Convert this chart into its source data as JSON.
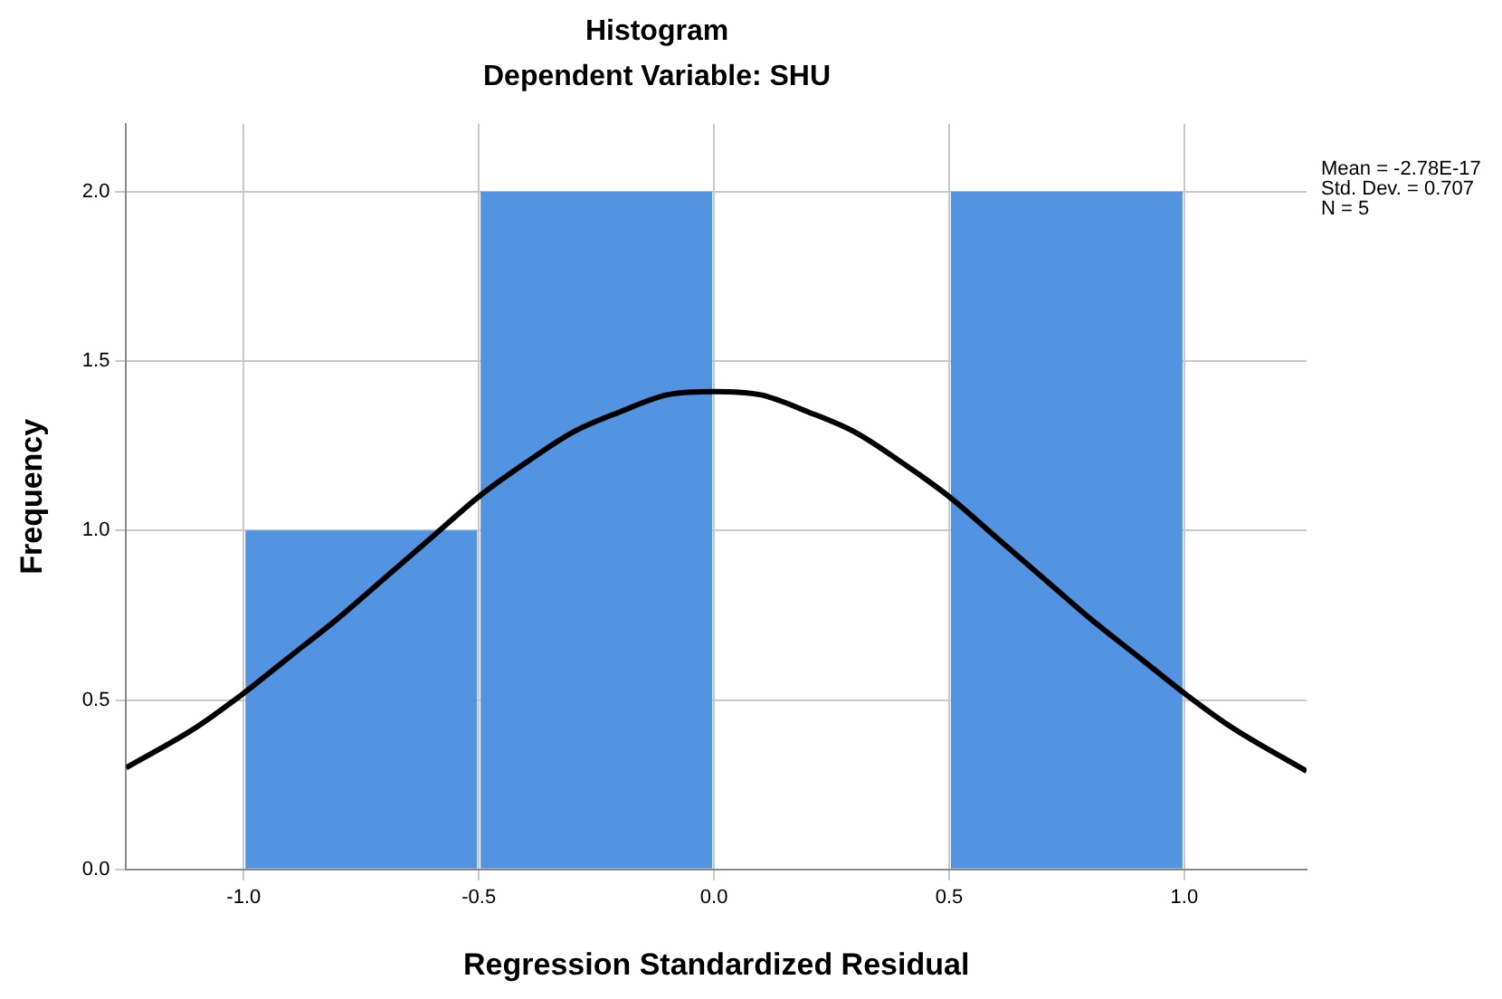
{
  "chart_data": {
    "type": "histogram",
    "title": "Histogram",
    "subtitle": "Dependent Variable: SHU",
    "xlabel": "Regression Standardized Residual",
    "ylabel": "Frequency",
    "bins": [
      -1.0,
      -0.5,
      0.0,
      0.5,
      1.0
    ],
    "values": [
      1,
      2,
      0,
      2
    ],
    "color": "#5294e2",
    "series": [
      {
        "type": "line",
        "color": "#000000",
        "x": [
          -1.25,
          -1.1,
          -1.0,
          -0.9,
          -0.8,
          -0.7,
          -0.6,
          -0.5,
          -0.4,
          -0.3,
          -0.2,
          -0.1,
          0.0,
          0.1,
          0.2,
          0.3,
          0.4,
          0.5,
          0.6,
          0.7,
          0.8,
          0.9,
          1.0,
          1.1,
          1.26
        ],
        "values": [
          0.3,
          0.42,
          0.52,
          0.63,
          0.74,
          0.86,
          0.98,
          1.1,
          1.2,
          1.29,
          1.35,
          1.4,
          1.41,
          1.4,
          1.35,
          1.29,
          1.2,
          1.1,
          0.98,
          0.86,
          0.74,
          0.63,
          0.52,
          0.42,
          0.29
        ]
      }
    ],
    "xlim": [
      -1.25,
      1.26
    ],
    "xticks": [
      {
        "value": -1.0,
        "label": "-1.0"
      },
      {
        "value": -0.5,
        "label": "-0.5"
      },
      {
        "value": 0.0,
        "label": "0.0"
      },
      {
        "value": 0.5,
        "label": "0.5"
      },
      {
        "value": 1.0,
        "label": "1.0"
      }
    ],
    "ylim": [
      0,
      2.2
    ],
    "yticks": [
      {
        "value": 0,
        "label": "0.0"
      },
      {
        "value": 0.5,
        "label": "0.5"
      },
      {
        "value": 1.0,
        "label": "1.0"
      },
      {
        "value": 1.5,
        "label": "1.5"
      },
      {
        "value": 2.0,
        "label": "2.0"
      }
    ],
    "grid": true,
    "legend": false,
    "marker": "none",
    "line_style": "solid",
    "annotations": [
      "Mean = -2.78E-17",
      "Std. Dev. = 0.707",
      "N = 5"
    ]
  }
}
